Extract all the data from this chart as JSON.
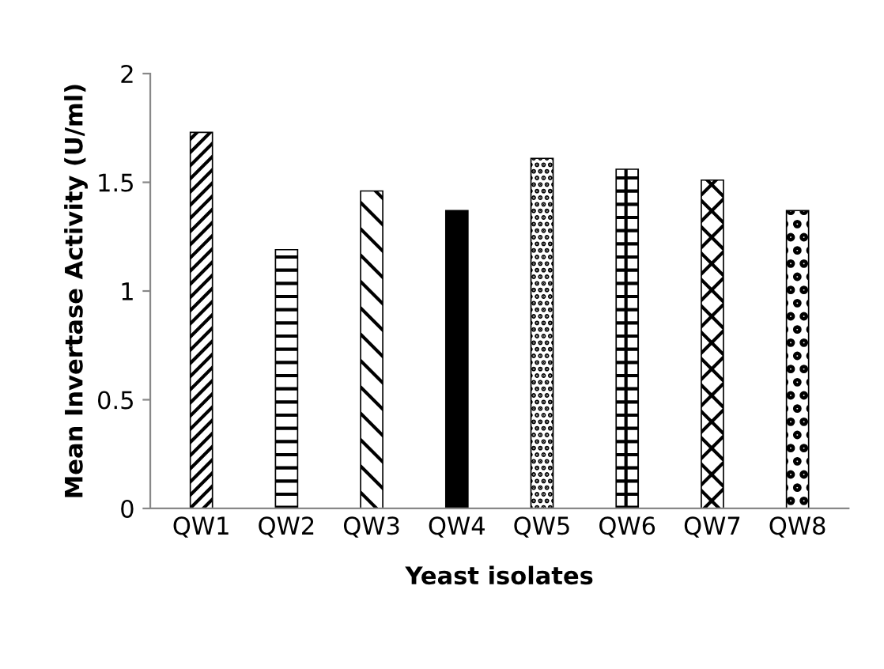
{
  "chart_data": {
    "type": "bar",
    "xlabel": "Yeast isolates",
    "ylabel": "Mean Invertase Activity (U/ml)",
    "categories": [
      "QW1",
      "QW2",
      "QW3",
      "QW4",
      "QW5",
      "QW6",
      "QW7",
      "QW8"
    ],
    "values": [
      1.73,
      1.19,
      1.46,
      1.37,
      1.61,
      1.56,
      1.51,
      1.37
    ],
    "color": "#000000",
    "ylim": [
      0,
      2
    ],
    "yticks": [
      0,
      0.5,
      1,
      1.5,
      2
    ],
    "grid": false,
    "legend": false
  }
}
